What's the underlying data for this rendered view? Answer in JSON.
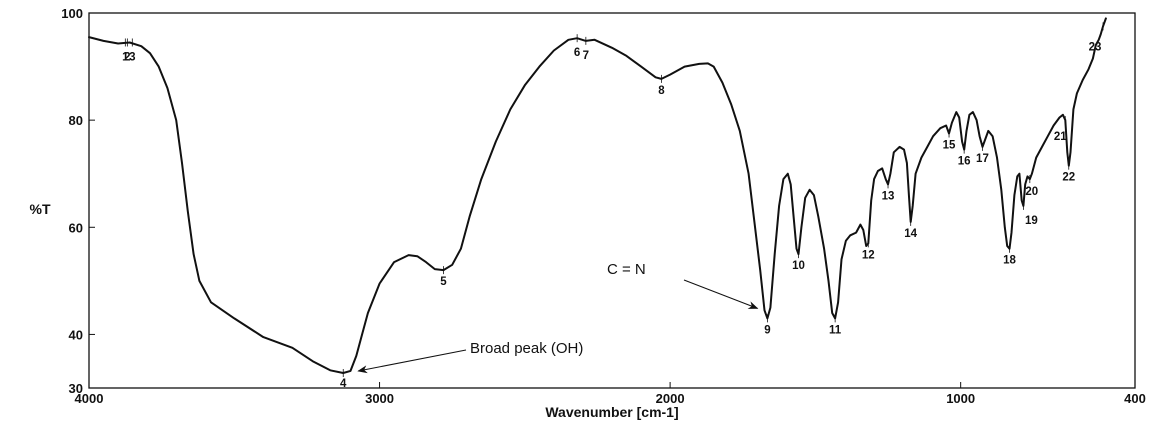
{
  "chart_data": {
    "type": "line",
    "title": "",
    "xlabel": "Wavenumber [cm-1]",
    "ylabel": "%T",
    "xlim": [
      4000,
      400
    ],
    "ylim": [
      30,
      100
    ],
    "x_reversed": true,
    "grid": false,
    "x_ticks": [
      {
        "value": 4000,
        "label": "4000"
      },
      {
        "value": 3000,
        "label": "3000"
      },
      {
        "value": 2000,
        "label": "2000"
      },
      {
        "value": 1000,
        "label": "1000"
      },
      {
        "value": 400,
        "label": "400"
      }
    ],
    "y_ticks": [
      {
        "value": 100,
        "label": "100"
      },
      {
        "value": 80,
        "label": "80"
      },
      {
        "value": 60,
        "label": "60"
      },
      {
        "value": 40,
        "label": "40"
      },
      {
        "value": 30,
        "label": "30"
      }
    ],
    "series": [
      {
        "color": "#111111",
        "points": [
          [
            4000,
            95.5
          ],
          [
            3950,
            94.8
          ],
          [
            3900,
            94.3
          ],
          [
            3860,
            94.5
          ],
          [
            3820,
            93.8
          ],
          [
            3790,
            92.5
          ],
          [
            3760,
            90.0
          ],
          [
            3730,
            86.0
          ],
          [
            3700,
            80.0
          ],
          [
            3680,
            72.0
          ],
          [
            3660,
            63.0
          ],
          [
            3640,
            55.0
          ],
          [
            3620,
            50.0
          ],
          [
            3580,
            46.0
          ],
          [
            3500,
            43.0
          ],
          [
            3400,
            39.5
          ],
          [
            3300,
            37.5
          ],
          [
            3230,
            35.0
          ],
          [
            3170,
            33.3
          ],
          [
            3125,
            32.8
          ],
          [
            3100,
            33.2
          ],
          [
            3080,
            36.0
          ],
          [
            3060,
            40.0
          ],
          [
            3040,
            44.0
          ],
          [
            3000,
            49.5
          ],
          [
            2950,
            53.5
          ],
          [
            2900,
            54.8
          ],
          [
            2870,
            54.6
          ],
          [
            2840,
            53.5
          ],
          [
            2810,
            52.2
          ],
          [
            2780,
            52.0
          ],
          [
            2750,
            53.0
          ],
          [
            2720,
            56.0
          ],
          [
            2690,
            62.0
          ],
          [
            2650,
            69.0
          ],
          [
            2600,
            76.0
          ],
          [
            2550,
            82.0
          ],
          [
            2500,
            86.5
          ],
          [
            2450,
            90.0
          ],
          [
            2400,
            93.0
          ],
          [
            2350,
            95.0
          ],
          [
            2320,
            95.3
          ],
          [
            2290,
            94.8
          ],
          [
            2260,
            95.0
          ],
          [
            2200,
            93.5
          ],
          [
            2150,
            92.0
          ],
          [
            2100,
            90.0
          ],
          [
            2050,
            88.0
          ],
          [
            2030,
            87.7
          ],
          [
            2000,
            88.5
          ],
          [
            1950,
            90.0
          ],
          [
            1900,
            90.5
          ],
          [
            1870,
            90.6
          ],
          [
            1850,
            90.0
          ],
          [
            1820,
            87.0
          ],
          [
            1790,
            83.0
          ],
          [
            1760,
            78.0
          ],
          [
            1730,
            70.0
          ],
          [
            1710,
            61.0
          ],
          [
            1690,
            52.0
          ],
          [
            1675,
            44.5
          ],
          [
            1665,
            43.0
          ],
          [
            1655,
            45.0
          ],
          [
            1640,
            55.0
          ],
          [
            1625,
            64.0
          ],
          [
            1610,
            69.0
          ],
          [
            1595,
            70.0
          ],
          [
            1585,
            68.0
          ],
          [
            1575,
            62.0
          ],
          [
            1565,
            56.0
          ],
          [
            1558,
            55.0
          ],
          [
            1548,
            60.0
          ],
          [
            1535,
            65.5
          ],
          [
            1520,
            67.0
          ],
          [
            1505,
            66.0
          ],
          [
            1490,
            62.0
          ],
          [
            1470,
            56.0
          ],
          [
            1455,
            50.0
          ],
          [
            1442,
            44.0
          ],
          [
            1432,
            43.0
          ],
          [
            1422,
            46.0
          ],
          [
            1410,
            54.0
          ],
          [
            1395,
            57.5
          ],
          [
            1380,
            58.5
          ],
          [
            1360,
            59.0
          ],
          [
            1345,
            60.5
          ],
          [
            1335,
            59.5
          ],
          [
            1325,
            56.5
          ],
          [
            1318,
            57.0
          ],
          [
            1308,
            65.0
          ],
          [
            1298,
            69.0
          ],
          [
            1285,
            70.5
          ],
          [
            1270,
            71.0
          ],
          [
            1258,
            69.0
          ],
          [
            1250,
            68.0
          ],
          [
            1242,
            70.0
          ],
          [
            1230,
            74.0
          ],
          [
            1210,
            75.0
          ],
          [
            1195,
            74.5
          ],
          [
            1185,
            72.0
          ],
          [
            1178,
            66.0
          ],
          [
            1172,
            61.0
          ],
          [
            1165,
            64.0
          ],
          [
            1155,
            70.0
          ],
          [
            1135,
            73.0
          ],
          [
            1115,
            75.0
          ],
          [
            1095,
            77.0
          ],
          [
            1070,
            78.5
          ],
          [
            1050,
            79.0
          ],
          [
            1040,
            77.5
          ],
          [
            1030,
            79.5
          ],
          [
            1015,
            81.5
          ],
          [
            1005,
            80.5
          ],
          [
            995,
            76.0
          ],
          [
            988,
            74.5
          ],
          [
            980,
            78.0
          ],
          [
            970,
            81.0
          ],
          [
            958,
            81.5
          ],
          [
            945,
            80.0
          ],
          [
            935,
            77.0
          ],
          [
            925,
            75.0
          ],
          [
            915,
            76.5
          ],
          [
            905,
            78.0
          ],
          [
            890,
            77.0
          ],
          [
            875,
            73.0
          ],
          [
            860,
            67.0
          ],
          [
            848,
            60.0
          ],
          [
            840,
            56.5
          ],
          [
            832,
            56.0
          ],
          [
            825,
            59.0
          ],
          [
            815,
            66.0
          ],
          [
            805,
            69.5
          ],
          [
            798,
            70.0
          ],
          [
            790,
            65.0
          ],
          [
            784,
            64.0
          ],
          [
            778,
            68.0
          ],
          [
            770,
            69.5
          ],
          [
            762,
            69.0
          ],
          [
            755,
            70.0
          ],
          [
            740,
            73.0
          ],
          [
            720,
            75.0
          ],
          [
            700,
            77.0
          ],
          [
            680,
            79.0
          ],
          [
            660,
            80.5
          ],
          [
            648,
            81.0
          ],
          [
            640,
            80.0
          ],
          [
            633,
            74.0
          ],
          [
            628,
            71.5
          ],
          [
            622,
            74.0
          ],
          [
            612,
            82.0
          ],
          [
            600,
            85.0
          ],
          [
            580,
            87.5
          ],
          [
            560,
            89.5
          ],
          [
            545,
            91.5
          ],
          [
            535,
            94.0
          ],
          [
            525,
            95.0
          ],
          [
            518,
            96.0
          ],
          [
            510,
            97.5
          ],
          [
            500,
            99.0
          ]
        ]
      }
    ],
    "peak_labels": [
      {
        "label": "1",
        "x": 3875,
        "y": 94.5
      },
      {
        "label": "2",
        "x": 3868,
        "y": 94.5
      },
      {
        "label": "3",
        "x": 3851,
        "y": 94.5
      },
      {
        "label": "4",
        "x": 3125,
        "y": 32.8
      },
      {
        "label": "5",
        "x": 2780,
        "y": 52.0
      },
      {
        "label": "6",
        "x": 2320,
        "y": 95.3
      },
      {
        "label": "7",
        "x": 2290,
        "y": 94.8
      },
      {
        "label": "8",
        "x": 2030,
        "y": 87.7
      },
      {
        "label": "9",
        "x": 1665,
        "y": 43.0
      },
      {
        "label": "10",
        "x": 1558,
        "y": 55.0
      },
      {
        "label": "11",
        "x": 1432,
        "y": 43.0
      },
      {
        "label": "12",
        "x": 1318,
        "y": 57.0
      },
      {
        "label": "13",
        "x": 1250,
        "y": 68.0
      },
      {
        "label": "14",
        "x": 1172,
        "y": 61.0
      },
      {
        "label": "15",
        "x": 1040,
        "y": 77.5
      },
      {
        "label": "16",
        "x": 988,
        "y": 74.5
      },
      {
        "label": "17",
        "x": 925,
        "y": 75.0
      },
      {
        "label": "18",
        "x": 832,
        "y": 56.0
      },
      {
        "label": "19",
        "x": 784,
        "y": 64.0
      },
      {
        "label": "20",
        "x": 762,
        "y": 69.0
      },
      {
        "label": "21",
        "x": 640,
        "y": 80.0
      },
      {
        "label": "22",
        "x": 628,
        "y": 71.5
      },
      {
        "label": "23",
        "x": 510,
        "y": 97.5
      }
    ],
    "annotations": [
      {
        "text": "Broad peak (OH)",
        "x": 3125,
        "y": 32.8
      },
      {
        "text": "C = N",
        "x": 1665,
        "y": 43.0
      }
    ]
  }
}
